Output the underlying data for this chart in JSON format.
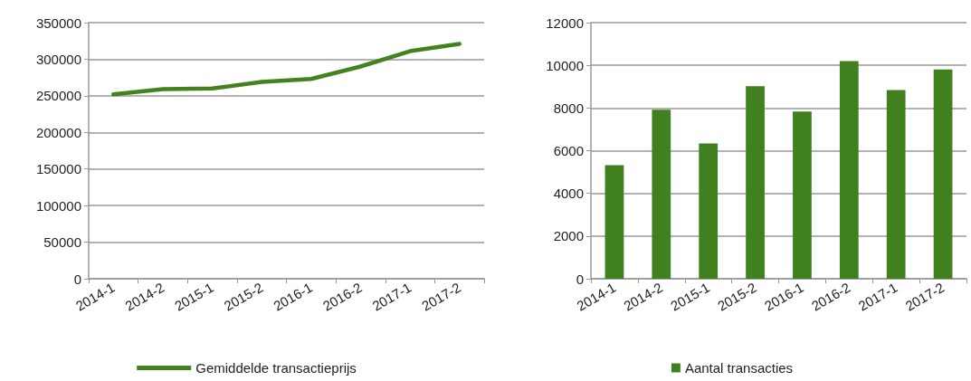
{
  "chart_data": [
    {
      "type": "line",
      "categories": [
        "2014-1",
        "2014-2",
        "2015-1",
        "2015-2",
        "2016-1",
        "2016-2",
        "2017-1",
        "2017-2"
      ],
      "series": [
        {
          "name": "Gemiddelde transactieprijs",
          "color": "#43821f",
          "values": [
            252000,
            259000,
            260000,
            269000,
            273000,
            290000,
            311000,
            321000
          ]
        }
      ],
      "ylim": [
        0,
        350000
      ],
      "yticks": [
        0,
        50000,
        100000,
        150000,
        200000,
        250000,
        300000,
        350000
      ],
      "grid": "y",
      "legend": "bottom",
      "marker": "none",
      "line_style": "solid"
    },
    {
      "type": "bar",
      "categories": [
        "2014-1",
        "2014-2",
        "2015-1",
        "2015-2",
        "2016-1",
        "2016-2",
        "2017-1",
        "2017-2"
      ],
      "series": [
        {
          "name": "Aantal transacties",
          "color": "#41801f",
          "values": [
            5320,
            7920,
            6340,
            9020,
            7830,
            10200,
            8840,
            9810
          ]
        }
      ],
      "ylim": [
        0,
        12000
      ],
      "yticks": [
        0,
        2000,
        4000,
        6000,
        8000,
        10000,
        12000
      ],
      "grid": "y",
      "legend": "bottom"
    }
  ]
}
